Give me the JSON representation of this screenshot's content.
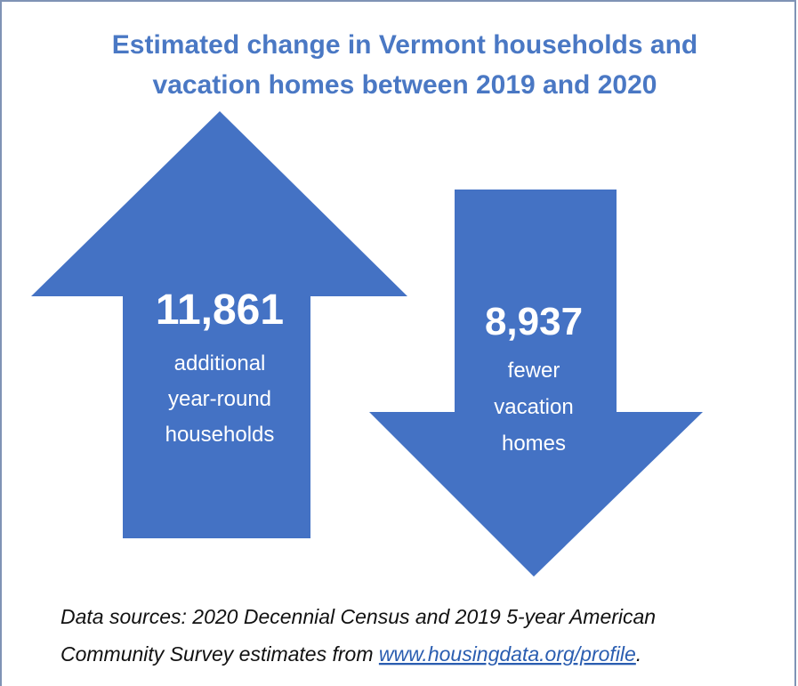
{
  "title": {
    "lines": [
      "Estimated change in Vermont households and",
      "vacation homes between 2019 and 2020"
    ]
  },
  "increase": {
    "number": "11,861",
    "lines": [
      "additional",
      "year-round",
      "households"
    ]
  },
  "decrease": {
    "number": "8,937",
    "lines": [
      "fewer",
      "vacation",
      "homes"
    ]
  },
  "source": {
    "line1": "Data sources: 2020 Decennial Census and 2019 5-year American",
    "line2_prefix": "Community Survey estimates from ",
    "link": "www.housingdata.org/profile",
    "line2_suffix": "."
  }
}
